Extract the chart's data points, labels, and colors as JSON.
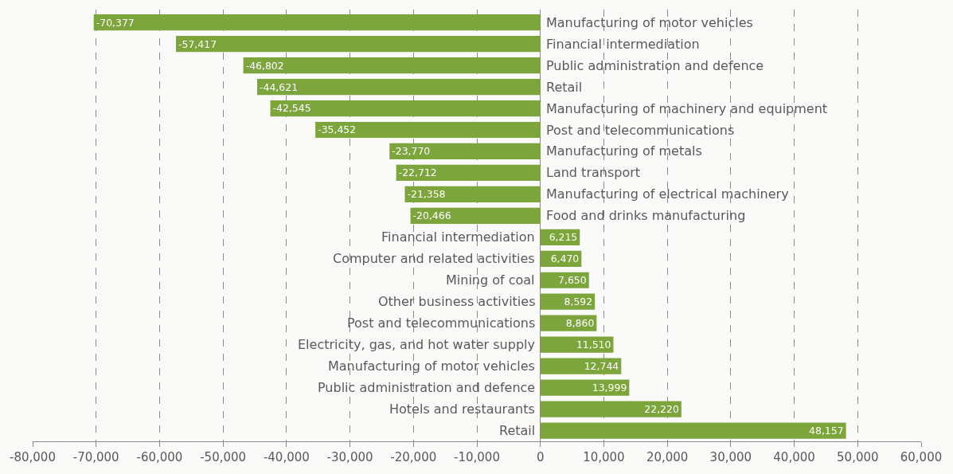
{
  "chart_data": {
    "type": "bar",
    "orientation": "horizontal",
    "categories": [
      "Manufacturing of motor vehicles",
      "Financial intermediation",
      "Public administration and defence",
      "Retail",
      "Manufacturing of machinery and equipment",
      "Post and telecommunications",
      "Manufacturing of metals",
      "Land transport",
      "Manufacturing of electrical machinery",
      "Food and drinks manufacturing",
      "Financial intermediation",
      "Computer and related activities",
      "Mining of coal",
      "Other business activities",
      "Post and telecommunications",
      "Electricity, gas, and hot water supply",
      "Manufacturing of motor vehicles",
      "Public administration and defence",
      "Hotels and restaurants",
      "Retail"
    ],
    "values": [
      -70377,
      -57417,
      -46802,
      -44621,
      -42545,
      -35452,
      -23770,
      -22712,
      -21358,
      -20466,
      6215,
      6470,
      7650,
      8592,
      8860,
      11510,
      12744,
      13999,
      22220,
      48157
    ],
    "value_labels": [
      "-70,377",
      "-57,417",
      "-46,802",
      "-44,621",
      "-42,545",
      "-35,452",
      "-23,770",
      "-22,712",
      "-21,358",
      "-20,466",
      "6,215",
      "6,470",
      "7,650",
      "8,592",
      "8,860",
      "11,510",
      "12,744",
      "13,999",
      "22,220",
      "48,157"
    ],
    "color": "#7ca53c",
    "grid": "x",
    "xlim": [
      -80000,
      60000
    ],
    "xticks": [
      {
        "value": -80000,
        "label": "-80,000"
      },
      {
        "value": -70000,
        "label": "-70,000"
      },
      {
        "value": -60000,
        "label": "-60,000"
      },
      {
        "value": -50000,
        "label": "-50,000"
      },
      {
        "value": -40000,
        "label": "-40,000"
      },
      {
        "value": -30000,
        "label": "-30,000"
      },
      {
        "value": -20000,
        "label": "-20,000"
      },
      {
        "value": -10000,
        "label": "-10,000"
      },
      0,
      {
        "value": 10000,
        "label": "10,000"
      },
      {
        "value": 20000,
        "label": "20,000"
      },
      {
        "value": 30000,
        "label": "30,000"
      },
      {
        "value": 40000,
        "label": "40,000"
      },
      {
        "value": 50000,
        "label": "50,000"
      },
      {
        "value": 60000,
        "label": "60,000"
      }
    ],
    "tick_labels": "x"
  }
}
